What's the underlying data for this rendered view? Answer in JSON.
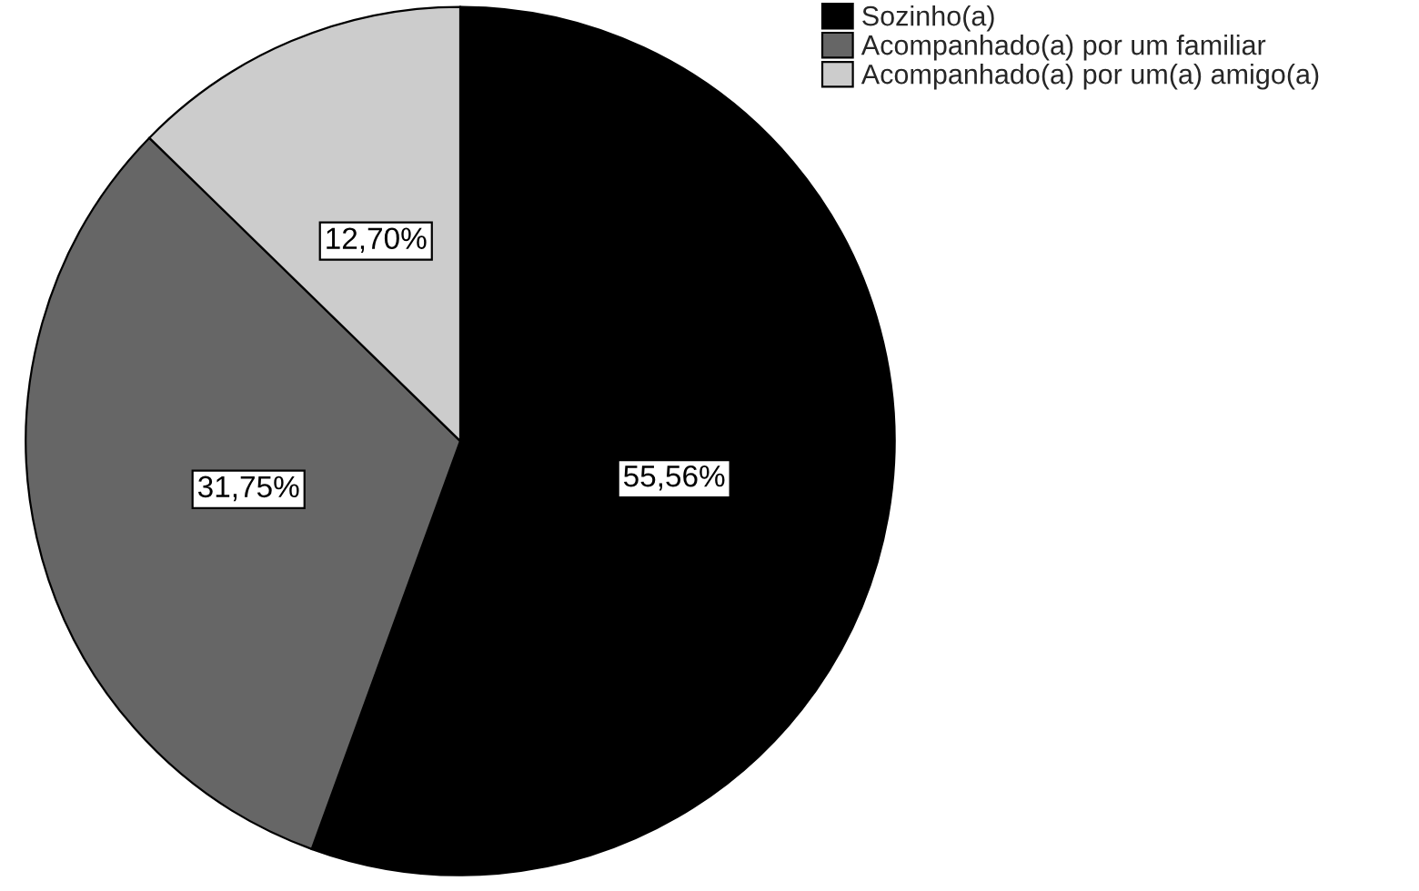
{
  "chart_data": {
    "type": "pie",
    "categories": [
      "Sozinho(a)",
      "Acompanhado(a) por um familiar",
      "Acompanhado(a) por um(a) amigo(a)"
    ],
    "values": [
      55.56,
      31.75,
      12.7
    ],
    "colors": [
      "#000000",
      "#666666",
      "#cccccc"
    ],
    "value_labels": [
      "55,56%",
      "31,75%",
      "12,70%"
    ],
    "legend": "top right"
  }
}
